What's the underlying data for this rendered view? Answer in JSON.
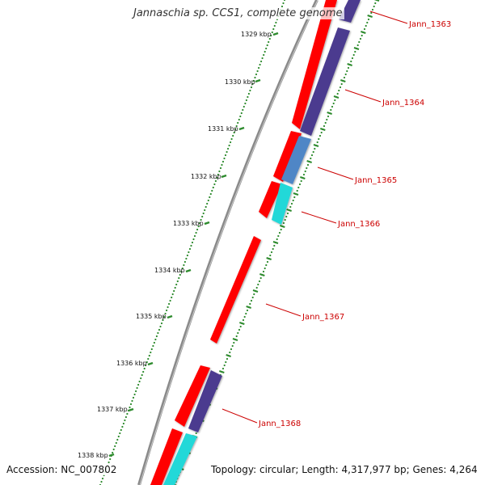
{
  "title": "Jannaschia sp. CCS1, complete genome",
  "footer": {
    "accession": "Accession: NC_007802",
    "summary": "Topology: circular; Length: 4,317,977 bp; Genes: 4,264"
  },
  "colors": {
    "forward_cds": "#ff0000",
    "reverse_cds": "#4b3a8f",
    "reverse_cds_light": "#4f86c6",
    "reverse_other": "#22d8d8",
    "backbone": "#8a8a8a",
    "tick": "#2e8b2e",
    "label": "#cc0000"
  },
  "scale": {
    "unit": "kbp",
    "ticks": [
      "1329 kbp",
      "1330 kbp",
      "1331 kbp",
      "1332 kbp",
      "1333 kbp",
      "1334 kbp",
      "1335 kbp",
      "1336 kbp",
      "1337 kbp",
      "1338 kbp"
    ]
  },
  "genes": [
    {
      "label": "Jann_1363",
      "strand": "reverse",
      "color_key": "reverse_cds"
    },
    {
      "label": "Jann_1364",
      "strand": "reverse",
      "color_key": "reverse_cds"
    },
    {
      "label": "Jann_1365",
      "strand": "reverse",
      "color_key": "reverse_cds_light"
    },
    {
      "label": "Jann_1366",
      "strand": "reverse",
      "color_key": "reverse_other"
    },
    {
      "label": "Jann_1367",
      "strand": "forward",
      "color_key": "forward_cds"
    },
    {
      "label": "Jann_1368",
      "strand": "reverse",
      "color_key": "reverse_cds"
    }
  ]
}
